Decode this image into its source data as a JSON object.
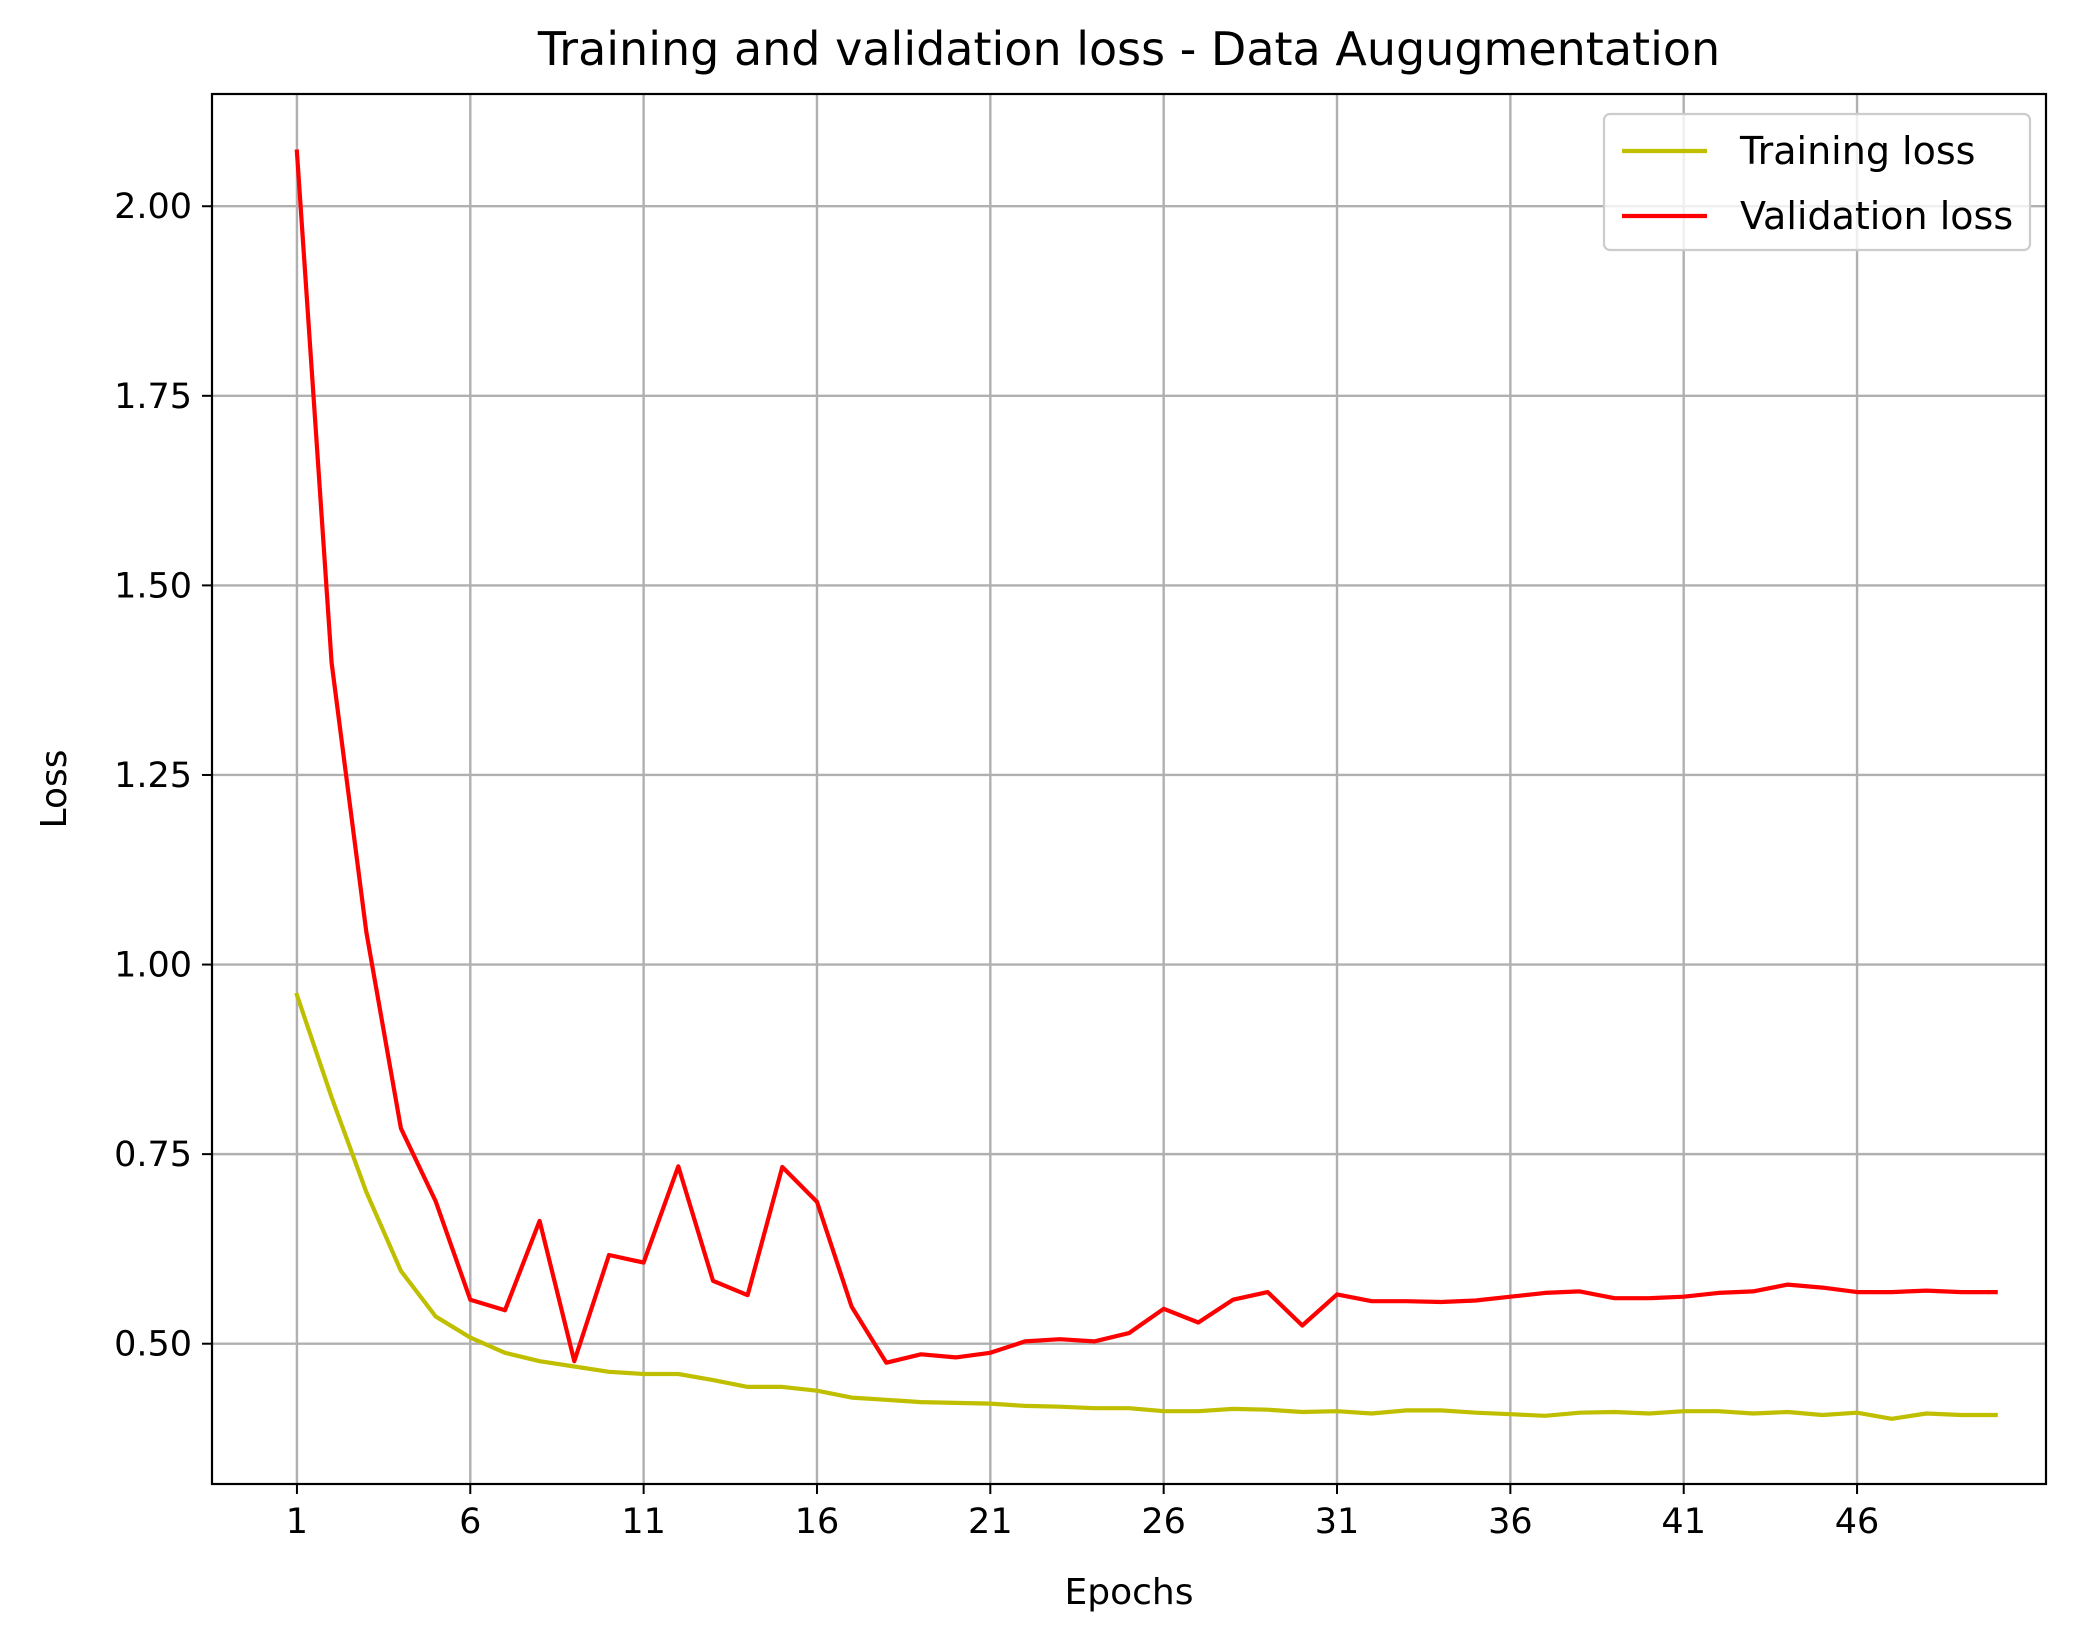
{
  "chart_data": {
    "type": "line",
    "title": "Training and validation loss - Data Augugmentation",
    "xlabel": "Epochs",
    "ylabel": "Loss",
    "xlim": [
      -1.45,
      51.45
    ],
    "ylim": [
      0.315,
      2.148
    ],
    "x_ticks": [
      1,
      6,
      11,
      16,
      21,
      26,
      31,
      36,
      41,
      46
    ],
    "x_tick_labels": [
      "1",
      "6",
      "11",
      "16",
      "21",
      "26",
      "31",
      "36",
      "41",
      "46"
    ],
    "y_ticks": [
      0.5,
      0.75,
      1.0,
      1.25,
      1.5,
      1.75,
      2.0
    ],
    "y_tick_labels": [
      "0.50",
      "0.75",
      "1.00",
      "1.25",
      "1.50",
      "1.75",
      "2.00"
    ],
    "grid": true,
    "legend_position": "top-right",
    "x": [
      1,
      2,
      3,
      4,
      5,
      6,
      7,
      8,
      9,
      10,
      11,
      12,
      13,
      14,
      15,
      16,
      17,
      18,
      19,
      20,
      21,
      22,
      23,
      24,
      25,
      26,
      27,
      28,
      29,
      30,
      31,
      32,
      33,
      34,
      35,
      36,
      37,
      38,
      39,
      40,
      41,
      42,
      43,
      44,
      45,
      46,
      47,
      48,
      49,
      50
    ],
    "series": [
      {
        "name": "Training loss",
        "color": "#bfbf00",
        "values": [
          0.96,
          0.825,
          0.7,
          0.596,
          0.536,
          0.508,
          0.488,
          0.477,
          0.47,
          0.463,
          0.46,
          0.46,
          0.452,
          0.443,
          0.443,
          0.438,
          0.429,
          0.426,
          0.423,
          0.422,
          0.421,
          0.418,
          0.417,
          0.415,
          0.415,
          0.411,
          0.411,
          0.414,
          0.413,
          0.41,
          0.411,
          0.408,
          0.412,
          0.412,
          0.409,
          0.407,
          0.405,
          0.409,
          0.41,
          0.408,
          0.411,
          0.411,
          0.408,
          0.41,
          0.406,
          0.409,
          0.401,
          0.408,
          0.406,
          0.406
        ]
      },
      {
        "name": "Validation loss",
        "color": "#ff0000",
        "values": [
          2.072,
          1.398,
          1.043,
          0.784,
          0.688,
          0.558,
          0.544,
          0.662,
          0.477,
          0.617,
          0.607,
          0.734,
          0.583,
          0.564,
          0.733,
          0.687,
          0.549,
          0.475,
          0.486,
          0.482,
          0.488,
          0.503,
          0.506,
          0.503,
          0.514,
          0.546,
          0.528,
          0.558,
          0.568,
          0.524,
          0.565,
          0.556,
          0.556,
          0.555,
          0.557,
          0.562,
          0.567,
          0.569,
          0.56,
          0.56,
          0.562,
          0.567,
          0.569,
          0.578,
          0.574,
          0.568,
          0.568,
          0.57,
          0.568,
          0.568
        ]
      }
    ]
  }
}
